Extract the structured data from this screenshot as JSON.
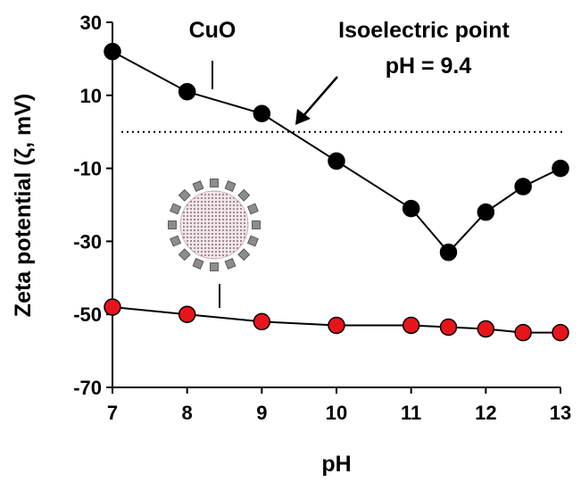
{
  "chart_data": {
    "type": "scatter",
    "xlabel": "pH",
    "ylabel": "Zeta potential (ζ, mV)",
    "xlim": [
      7,
      13
    ],
    "ylim": [
      -70,
      30
    ],
    "x_ticks": [
      "7",
      "8",
      "9",
      "10",
      "11",
      "12",
      "13"
    ],
    "y_ticks": [
      "30",
      "10",
      "-10",
      "-30",
      "-50",
      "-70"
    ],
    "grid": false,
    "legend": "none",
    "series": [
      {
        "name": "CuO",
        "color": "#000000",
        "x": [
          7,
          8,
          9,
          10,
          11,
          11.5,
          12,
          12.5,
          13
        ],
        "y": [
          22,
          11,
          5,
          -8,
          -21,
          -33,
          -22,
          -15,
          -10
        ]
      },
      {
        "name": "",
        "color": "#e8141b",
        "marker_icon": "nanoparticle-icon",
        "x": [
          7,
          8,
          9,
          10,
          11,
          11.5,
          12,
          12.5,
          13
        ],
        "y": [
          -48,
          -50,
          -52,
          -53,
          -53,
          -53.5,
          -54,
          -55,
          -55
        ]
      }
    ],
    "reference_line": {
      "y": 0,
      "style": "dotted"
    },
    "annotations": {
      "cuo_label": "CuO",
      "isoelectric_line1": "Isoelectric point",
      "isoelectric_line2": "pH = 9.4",
      "isoelectric_ph": 9.4
    }
  }
}
